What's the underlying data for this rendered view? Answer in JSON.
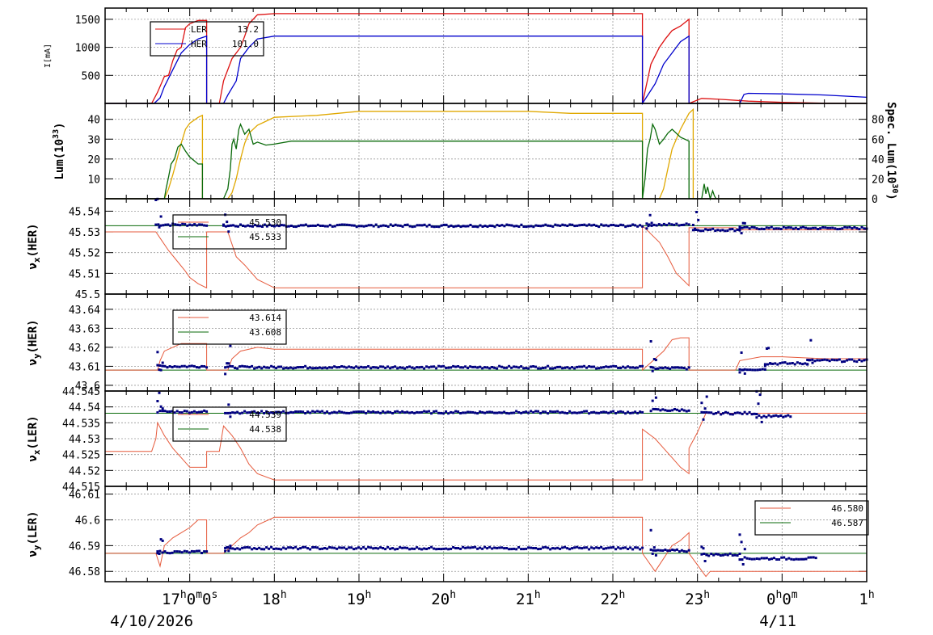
{
  "colors": {
    "red": "#dd1111",
    "blue": "#0000cc",
    "gold": "#e0a800",
    "green": "#0a6a0a",
    "grid": "#999999",
    "marker": "#000080",
    "light_red": "#e65a3c"
  },
  "x_axis": {
    "tick_labels": [
      {
        "main": "17",
        "sup": "h",
        "rest": "0",
        "sup2": "m",
        "rest2": "0",
        "sup3": "s",
        "t": 17
      },
      {
        "main": "18",
        "sup": "h",
        "t": 18
      },
      {
        "main": "19",
        "sup": "h",
        "t": 19
      },
      {
        "main": "20",
        "sup": "h",
        "t": 20
      },
      {
        "main": "21",
        "sup": "h",
        "t": 21
      },
      {
        "main": "22",
        "sup": "h",
        "t": 22
      },
      {
        "main": "23",
        "sup": "h",
        "t": 23
      },
      {
        "main": "0",
        "sup": "h",
        "rest": "0",
        "sup2": "m",
        "t": 24
      },
      {
        "main": "1",
        "sup": "h",
        "t": 25
      }
    ],
    "date_left": "4/10/2026",
    "date_right": "4/11",
    "range_hours": [
      16.0,
      25.0
    ]
  },
  "chart_data": [
    {
      "type": "line",
      "panel": "current",
      "ylabel": "I[mA]",
      "ylim": [
        0,
        1700
      ],
      "yticks": [
        500,
        1000,
        1500
      ],
      "grid": true,
      "legend_placement": "top-left",
      "series": [
        {
          "name": "LER",
          "value_label": "13.2",
          "color": "red",
          "x": [
            16.0,
            16.55,
            16.62,
            16.7,
            16.75,
            16.8,
            16.85,
            16.9,
            16.95,
            17.0,
            17.1,
            17.2,
            17.2001,
            17.35,
            17.4,
            17.5,
            17.6,
            17.65,
            17.7,
            17.8,
            18.0,
            19.0,
            20.0,
            21.0,
            22.0,
            22.35,
            22.3501,
            22.45,
            22.55,
            22.62,
            22.7,
            22.8,
            22.9,
            22.9001,
            23.05,
            23.3,
            23.6,
            24.0,
            24.5,
            25.0
          ],
          "y": [
            0,
            0,
            200,
            480,
            500,
            760,
            950,
            1000,
            1350,
            1420,
            1480,
            1480,
            0,
            0,
            400,
            800,
            1000,
            1200,
            1420,
            1580,
            1600,
            1600,
            1600,
            1600,
            1600,
            1600,
            0,
            700,
            1000,
            1150,
            1300,
            1380,
            1500,
            0,
            90,
            70,
            40,
            20,
            5,
            0
          ]
        },
        {
          "name": "HER",
          "value_label": "101.0",
          "color": "blue",
          "x": [
            16.0,
            16.58,
            16.65,
            16.7,
            16.8,
            16.9,
            17.0,
            17.1,
            17.2,
            17.2001,
            17.4,
            17.45,
            17.55,
            17.6,
            17.7,
            17.8,
            18.0,
            19.0,
            20.0,
            21.0,
            22.0,
            22.35,
            22.3501,
            22.5,
            22.6,
            22.7,
            22.8,
            22.9,
            22.9001,
            23.5,
            23.55,
            23.6,
            24.0,
            24.5,
            25.0
          ],
          "y": [
            0,
            0,
            100,
            300,
            600,
            900,
            1050,
            1150,
            1200,
            0,
            0,
            150,
            400,
            800,
            1000,
            1150,
            1200,
            1200,
            1200,
            1200,
            1200,
            1200,
            0,
            350,
            700,
            900,
            1100,
            1200,
            0,
            0,
            160,
            180,
            170,
            150,
            110
          ]
        }
      ]
    },
    {
      "type": "line",
      "panel": "luminosity",
      "ylabel_left": "Lum(10^33)",
      "ylabel_right": "Spec. Lum(10^30)",
      "ylim_left": [
        0,
        48
      ],
      "yticks_left": [
        10,
        20,
        30,
        40
      ],
      "ylim_right": [
        0,
        96
      ],
      "yticks_right": [
        0,
        20,
        40,
        60,
        80
      ],
      "grid": true,
      "series": [
        {
          "name": "Lum",
          "color": "gold",
          "x": [
            16.0,
            16.7,
            16.75,
            16.8,
            16.85,
            16.9,
            16.95,
            17.0,
            17.1,
            17.15,
            17.1501,
            17.45,
            17.5,
            17.55,
            17.6,
            17.65,
            17.7,
            17.8,
            17.9,
            18.0,
            18.5,
            19.0,
            19.5,
            20.0,
            20.5,
            21.0,
            21.5,
            22.0,
            22.35,
            22.3501,
            22.55,
            22.6,
            22.65,
            22.7,
            22.8,
            22.9,
            22.95,
            22.9501,
            25.0
          ],
          "y": [
            0,
            0,
            5,
            12,
            20,
            28,
            35,
            38,
            41,
            42,
            0,
            0,
            3,
            10,
            20,
            28,
            33,
            37,
            39,
            41,
            42,
            44,
            44,
            44,
            44,
            44,
            43,
            43,
            43,
            0,
            0,
            5,
            15,
            25,
            35,
            43,
            45,
            0,
            0
          ]
        },
        {
          "name": "Spec",
          "color": "green",
          "x": [
            16.0,
            16.7,
            16.72,
            16.75,
            16.78,
            16.82,
            16.86,
            16.9,
            16.95,
            17.0,
            17.1,
            17.15,
            17.1501,
            17.4,
            17.45,
            17.48,
            17.5,
            17.52,
            17.55,
            17.58,
            17.6,
            17.65,
            17.7,
            17.75,
            17.8,
            17.9,
            18.0,
            18.2,
            18.5,
            19.0,
            19.5,
            20.0,
            20.5,
            21.0,
            21.5,
            22.0,
            22.35,
            22.3501,
            22.38,
            22.41,
            22.44,
            22.47,
            22.5,
            22.55,
            22.6,
            22.65,
            22.7,
            22.8,
            22.9,
            22.9001,
            23.05,
            23.08,
            23.1,
            23.12,
            23.15,
            23.18,
            23.2,
            23.22,
            25.0
          ],
          "y": [
            0,
            0,
            10,
            22,
            35,
            40,
            52,
            55,
            48,
            42,
            35,
            35,
            0,
            0,
            10,
            30,
            55,
            60,
            50,
            70,
            75,
            65,
            70,
            55,
            57,
            54,
            55,
            58,
            58,
            58,
            58,
            58,
            58,
            58,
            58,
            58,
            58,
            0,
            20,
            50,
            60,
            75,
            70,
            55,
            60,
            66,
            70,
            62,
            58,
            0,
            0,
            15,
            5,
            12,
            0,
            8,
            3,
            0,
            0
          ],
          "y_axis": "right"
        }
      ]
    },
    {
      "type": "scatter",
      "panel": "nu_x_HER",
      "ylabel": "νx(HER)",
      "ylim": [
        45.5,
        45.546
      ],
      "yticks": [
        45.5,
        45.51,
        45.52,
        45.53,
        45.54
      ],
      "grid": true,
      "legend_placement": "top-left",
      "reference_value": 45.533,
      "series": [
        {
          "name": "",
          "value_label": "45.530",
          "color": "light_red",
          "kind": "line",
          "x": [
            16.0,
            16.6,
            16.65,
            16.75,
            16.85,
            16.95,
            17.0,
            17.1,
            17.2,
            17.2001,
            17.45,
            17.55,
            17.65,
            17.8,
            18.0,
            19.0,
            20.0,
            21.0,
            22.0,
            22.35,
            22.3501,
            22.55,
            22.65,
            22.75,
            22.9,
            22.9001,
            23.45,
            23.5,
            23.7,
            24.0,
            25.0
          ],
          "y": [
            45.53,
            45.53,
            45.527,
            45.521,
            45.516,
            45.511,
            45.508,
            45.505,
            45.503,
            45.53,
            45.53,
            45.518,
            45.514,
            45.507,
            45.503,
            45.503,
            45.503,
            45.503,
            45.503,
            45.503,
            45.533,
            45.525,
            45.518,
            45.51,
            45.504,
            45.532,
            45.532,
            45.531,
            45.531,
            45.531,
            45.531
          ]
        },
        {
          "name": "",
          "value_label": "45.533",
          "color": "green",
          "kind": "hline",
          "y": 45.533
        },
        {
          "name": "",
          "color": "marker",
          "kind": "scatter",
          "segments": [
            [
              16.6,
              17.2,
              45.5335
            ],
            [
              17.4,
              22.35,
              45.533
            ],
            [
              22.4,
              22.9,
              45.5335
            ],
            [
              22.95,
              23.5,
              45.531
            ],
            [
              23.5,
              25.0,
              45.5318
            ]
          ]
        }
      ]
    },
    {
      "type": "scatter",
      "panel": "nu_y_HER",
      "ylabel": "νy(HER)",
      "ylim": [
        43.597,
        43.648
      ],
      "yticks": [
        43.6,
        43.61,
        43.62,
        43.63,
        43.64
      ],
      "grid": true,
      "legend_placement": "top-left",
      "reference_value": 43.608,
      "series": [
        {
          "name": "",
          "value_label": "43.614",
          "color": "light_red",
          "kind": "line",
          "x": [
            16.0,
            16.62,
            16.65,
            16.7,
            16.8,
            16.9,
            17.2,
            17.2001,
            17.45,
            17.5,
            17.6,
            17.8,
            18.0,
            19.0,
            20.0,
            21.0,
            22.0,
            22.35,
            22.3501,
            22.6,
            22.7,
            22.8,
            22.9,
            22.9001,
            23.45,
            23.5,
            23.75,
            24.0,
            24.5,
            25.0
          ],
          "y": [
            43.608,
            43.608,
            43.613,
            43.618,
            43.62,
            43.622,
            43.622,
            43.608,
            43.608,
            43.614,
            43.618,
            43.62,
            43.619,
            43.619,
            43.619,
            43.619,
            43.619,
            43.619,
            43.608,
            43.618,
            43.624,
            43.625,
            43.625,
            43.608,
            43.608,
            43.613,
            43.615,
            43.615,
            43.614,
            43.614
          ]
        },
        {
          "name": "",
          "value_label": "43.608",
          "color": "green",
          "kind": "hline",
          "y": 43.608
        },
        {
          "name": "",
          "color": "marker",
          "kind": "scatter",
          "segments": [
            [
              16.62,
              17.2,
              43.61
            ],
            [
              17.42,
              22.35,
              43.6095
            ],
            [
              22.45,
              22.9,
              43.609
            ],
            [
              23.5,
              23.8,
              43.6085
            ],
            [
              23.8,
              24.3,
              43.6115
            ],
            [
              24.3,
              25.0,
              43.613
            ]
          ]
        }
      ]
    },
    {
      "type": "scatter",
      "panel": "nu_x_LER",
      "ylabel": "νx(LER)",
      "ylim": [
        44.515,
        44.545
      ],
      "yticks": [
        44.515,
        44.52,
        44.525,
        44.53,
        44.535,
        44.54,
        44.545
      ],
      "grid": true,
      "legend_placement": "top-left",
      "reference_value": 44.538,
      "series": [
        {
          "name": "",
          "value_label": "44.539",
          "color": "light_red",
          "kind": "line",
          "x": [
            16.0,
            16.55,
            16.6,
            16.62,
            16.7,
            16.8,
            16.9,
            17.0,
            17.15,
            17.2,
            17.2001,
            17.35,
            17.4,
            17.5,
            17.6,
            17.7,
            17.8,
            18.0,
            19.0,
            20.0,
            21.0,
            22.0,
            22.35,
            22.3501,
            22.5,
            22.6,
            22.7,
            22.8,
            22.9,
            22.9001,
            23.0,
            23.1,
            25.0
          ],
          "y": [
            44.526,
            44.526,
            44.53,
            44.535,
            44.531,
            44.527,
            44.524,
            44.521,
            44.521,
            44.521,
            44.526,
            44.526,
            44.534,
            44.531,
            44.527,
            44.522,
            44.519,
            44.517,
            44.517,
            44.517,
            44.517,
            44.517,
            44.517,
            44.533,
            44.53,
            44.527,
            44.524,
            44.521,
            44.519,
            44.527,
            44.532,
            44.538,
            44.538
          ]
        },
        {
          "name": "",
          "value_label": "44.538",
          "color": "green",
          "kind": "hline",
          "y": 44.538
        },
        {
          "name": "",
          "color": "marker",
          "kind": "scatter",
          "segments": [
            [
              16.62,
              17.2,
              44.5385
            ],
            [
              17.42,
              22.35,
              44.5383
            ],
            [
              22.45,
              22.9,
              44.539
            ],
            [
              23.05,
              23.7,
              44.538
            ],
            [
              23.7,
              24.1,
              44.537
            ]
          ]
        }
      ]
    },
    {
      "type": "scatter",
      "panel": "nu_y_LER",
      "ylabel": "νy(LER)",
      "ylim": [
        46.576,
        46.613
      ],
      "yticks": [
        46.58,
        46.59,
        46.6,
        46.61
      ],
      "grid": true,
      "legend_placement": "top-right",
      "reference_value": 46.587,
      "series": [
        {
          "name": "",
          "value_label": "46.580",
          "color": "light_red",
          "kind": "line",
          "x": [
            16.0,
            16.6,
            16.65,
            16.7,
            16.8,
            16.9,
            17.0,
            17.1,
            17.2,
            17.2001,
            17.4,
            17.5,
            17.6,
            17.7,
            17.8,
            18.0,
            19.0,
            20.0,
            21.0,
            22.0,
            22.35,
            22.3501,
            22.5,
            22.6,
            22.7,
            22.8,
            22.9,
            22.9001,
            23.1,
            23.15,
            25.0
          ],
          "y": [
            46.587,
            46.587,
            46.582,
            46.59,
            46.593,
            46.595,
            46.597,
            46.6,
            46.6,
            46.587,
            46.587,
            46.59,
            46.593,
            46.595,
            46.598,
            46.601,
            46.601,
            46.601,
            46.601,
            46.601,
            46.601,
            46.587,
            46.58,
            46.585,
            46.59,
            46.592,
            46.595,
            46.587,
            46.578,
            46.58,
            46.58
          ]
        },
        {
          "name": "",
          "value_label": "46.587",
          "color": "green",
          "kind": "hline",
          "y": 46.587
        },
        {
          "name": "",
          "color": "marker",
          "kind": "scatter",
          "segments": [
            [
              16.62,
              17.2,
              46.5875
            ],
            [
              17.42,
              22.35,
              46.589
            ],
            [
              22.45,
              22.9,
              46.588
            ],
            [
              23.05,
              23.5,
              46.5865
            ],
            [
              23.5,
              24.4,
              46.585
            ]
          ]
        }
      ]
    }
  ]
}
